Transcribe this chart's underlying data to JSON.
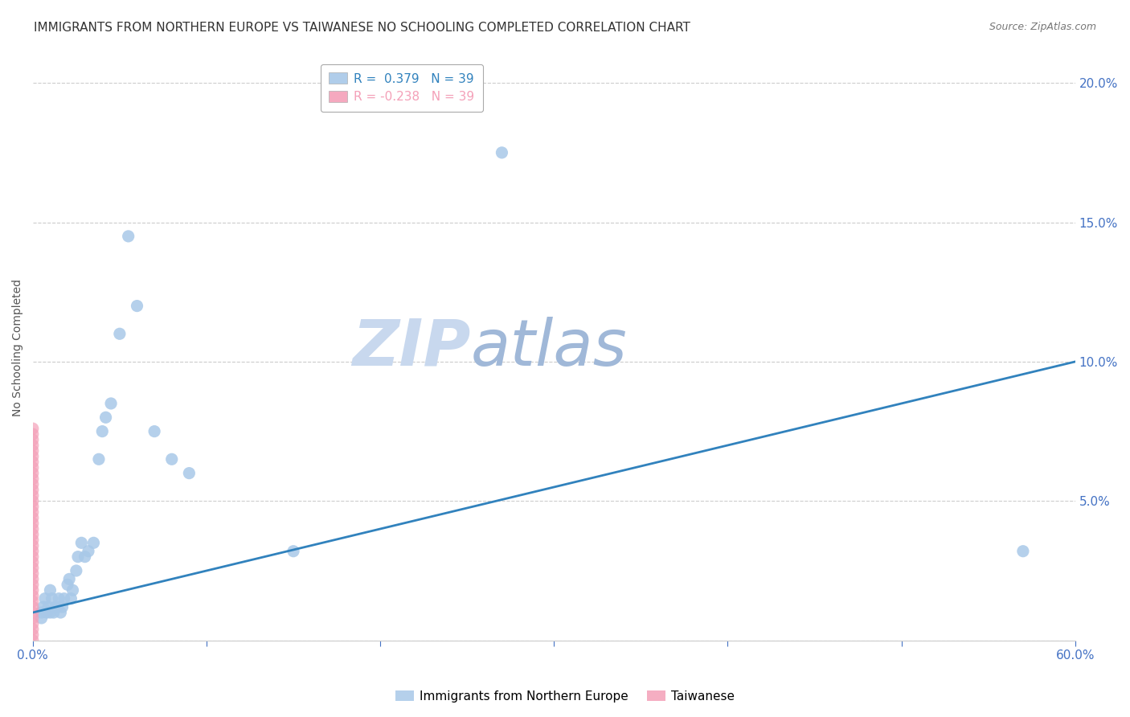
{
  "title": "IMMIGRANTS FROM NORTHERN EUROPE VS TAIWANESE NO SCHOOLING COMPLETED CORRELATION CHART",
  "source": "Source: ZipAtlas.com",
  "ylabel_label": "No Schooling Completed",
  "xlim": [
    0.0,
    0.6
  ],
  "ylim": [
    0.0,
    0.21
  ],
  "xticks": [
    0.0,
    0.1,
    0.2,
    0.3,
    0.4,
    0.5,
    0.6
  ],
  "yticks": [
    0.0,
    0.05,
    0.1,
    0.15,
    0.2
  ],
  "xtick_labels": [
    "0.0%",
    "",
    "",
    "",
    "",
    "",
    "60.0%"
  ],
  "ytick_labels_right": [
    "",
    "5.0%",
    "10.0%",
    "15.0%",
    "20.0%"
  ],
  "blue_scatter_x": [
    0.005,
    0.005,
    0.006,
    0.007,
    0.008,
    0.009,
    0.01,
    0.01,
    0.011,
    0.012,
    0.013,
    0.014,
    0.015,
    0.016,
    0.017,
    0.018,
    0.02,
    0.021,
    0.022,
    0.023,
    0.025,
    0.026,
    0.028,
    0.03,
    0.032,
    0.035,
    0.038,
    0.04,
    0.042,
    0.045,
    0.05,
    0.055,
    0.06,
    0.07,
    0.08,
    0.09,
    0.15,
    0.57,
    0.27
  ],
  "blue_scatter_y": [
    0.01,
    0.008,
    0.012,
    0.015,
    0.01,
    0.012,
    0.018,
    0.01,
    0.015,
    0.01,
    0.012,
    0.012,
    0.015,
    0.01,
    0.012,
    0.015,
    0.02,
    0.022,
    0.015,
    0.018,
    0.025,
    0.03,
    0.035,
    0.03,
    0.032,
    0.035,
    0.065,
    0.075,
    0.08,
    0.085,
    0.11,
    0.145,
    0.12,
    0.075,
    0.065,
    0.06,
    0.032,
    0.032,
    0.175
  ],
  "pink_scatter_x": [
    0.0,
    0.0,
    0.0,
    0.0,
    0.0,
    0.0,
    0.0,
    0.0,
    0.0,
    0.0,
    0.0,
    0.0,
    0.0,
    0.0,
    0.0,
    0.0,
    0.0,
    0.0,
    0.0,
    0.0,
    0.0,
    0.0,
    0.0,
    0.0,
    0.0,
    0.0,
    0.0,
    0.0,
    0.0,
    0.0,
    0.0,
    0.0,
    0.0,
    0.0,
    0.0,
    0.0,
    0.0,
    0.0,
    0.0
  ],
  "pink_scatter_y": [
    0.0,
    0.002,
    0.004,
    0.006,
    0.008,
    0.01,
    0.012,
    0.014,
    0.016,
    0.018,
    0.02,
    0.022,
    0.024,
    0.026,
    0.028,
    0.03,
    0.032,
    0.034,
    0.036,
    0.038,
    0.04,
    0.042,
    0.044,
    0.046,
    0.048,
    0.05,
    0.052,
    0.054,
    0.056,
    0.058,
    0.06,
    0.062,
    0.064,
    0.066,
    0.068,
    0.07,
    0.072,
    0.074,
    0.076
  ],
  "blue_line_x": [
    0.0,
    0.6
  ],
  "blue_line_y": [
    0.01,
    0.1
  ],
  "blue_color": "#a8c8e8",
  "pink_color": "#f4a0b8",
  "blue_line_color": "#3182bd",
  "legend_r_blue": "R =  0.379",
  "legend_n_blue": "N = 39",
  "legend_r_pink": "R = -0.238",
  "legend_n_pink": "N = 39",
  "legend_label_blue": "Immigrants from Northern Europe",
  "legend_label_pink": "Taiwanese",
  "watermark_zip": "ZIP",
  "watermark_atlas": "atlas",
  "title_fontsize": 11,
  "axis_label_fontsize": 10,
  "tick_fontsize": 11,
  "legend_fontsize": 11,
  "background_color": "#ffffff",
  "grid_color": "#cccccc",
  "title_color": "#333333",
  "axis_color": "#4472c4",
  "scatter_size": 120
}
